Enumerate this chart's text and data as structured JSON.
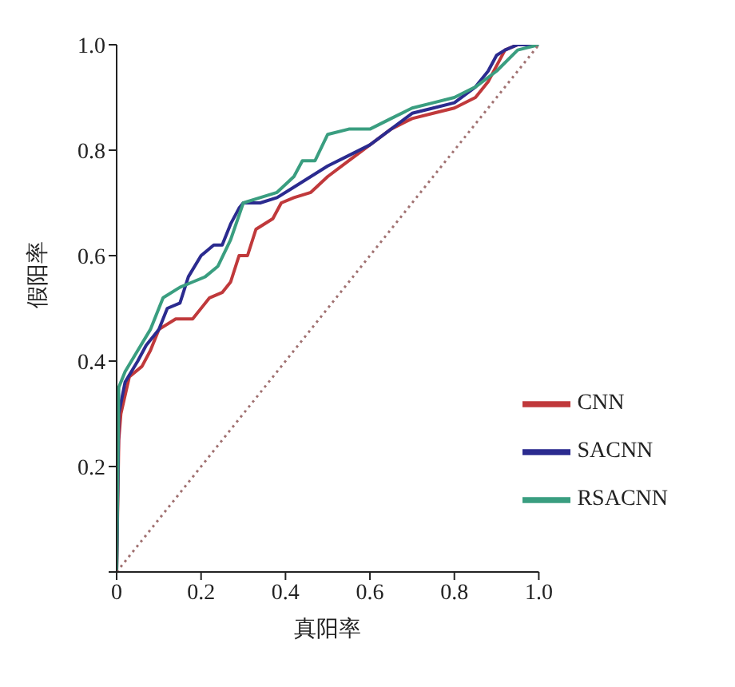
{
  "chart_data": {
    "type": "line",
    "xlabel": "真阳率",
    "ylabel": "假阳率",
    "xlim": [
      0,
      1
    ],
    "ylim": [
      0,
      1
    ],
    "xticks": [
      0,
      0.2,
      0.4,
      0.6,
      0.8,
      {
        "value": 1,
        "label": "1.0"
      }
    ],
    "yticks": [
      {
        "value": 0,
        "label": null
      },
      0.2,
      0.4,
      0.6,
      0.8,
      {
        "value": 1,
        "label": "1.0"
      }
    ],
    "grid": false,
    "legend": "bottom right",
    "marker": "none",
    "series": [
      {
        "name": "CNN",
        "color": "#c0393b",
        "x": [
          0,
          0.005,
          0.01,
          0.03,
          0.06,
          0.08,
          0.1,
          0.14,
          0.18,
          0.22,
          0.25,
          0.27,
          0.29,
          0.31,
          0.33,
          0.37,
          0.39,
          0.42,
          0.46,
          0.5,
          0.55,
          0.6,
          0.65,
          0.7,
          0.75,
          0.8,
          0.85,
          0.88,
          0.9,
          0.92,
          0.95,
          1
        ],
        "values": [
          0,
          0.25,
          0.3,
          0.37,
          0.39,
          0.42,
          0.46,
          0.48,
          0.48,
          0.52,
          0.53,
          0.55,
          0.6,
          0.6,
          0.65,
          0.67,
          0.7,
          0.71,
          0.72,
          0.75,
          0.78,
          0.81,
          0.84,
          0.86,
          0.87,
          0.88,
          0.9,
          0.93,
          0.96,
          0.99,
          1,
          1
        ]
      },
      {
        "name": "SACNN",
        "color": "#2b2b8f",
        "x": [
          0,
          0.005,
          0.02,
          0.05,
          0.07,
          0.1,
          0.12,
          0.15,
          0.17,
          0.2,
          0.23,
          0.25,
          0.27,
          0.29,
          0.3,
          0.34,
          0.38,
          0.42,
          0.46,
          0.5,
          0.55,
          0.6,
          0.65,
          0.7,
          0.75,
          0.8,
          0.85,
          0.88,
          0.9,
          0.92,
          0.95,
          1
        ],
        "values": [
          0,
          0.3,
          0.36,
          0.4,
          0.43,
          0.46,
          0.5,
          0.51,
          0.56,
          0.6,
          0.62,
          0.62,
          0.66,
          0.69,
          0.7,
          0.7,
          0.71,
          0.73,
          0.75,
          0.77,
          0.79,
          0.81,
          0.84,
          0.87,
          0.88,
          0.89,
          0.92,
          0.95,
          0.98,
          0.99,
          1,
          1
        ]
      },
      {
        "name": "RSACNN",
        "color": "#3a9e80",
        "x": [
          0,
          0.005,
          0.02,
          0.05,
          0.08,
          0.11,
          0.15,
          0.18,
          0.21,
          0.24,
          0.27,
          0.3,
          0.34,
          0.38,
          0.42,
          0.44,
          0.47,
          0.5,
          0.55,
          0.6,
          0.65,
          0.7,
          0.75,
          0.8,
          0.85,
          0.9,
          0.95,
          1
        ],
        "values": [
          0,
          0.35,
          0.38,
          0.42,
          0.46,
          0.52,
          0.54,
          0.55,
          0.56,
          0.58,
          0.63,
          0.7,
          0.71,
          0.72,
          0.75,
          0.78,
          0.78,
          0.83,
          0.84,
          0.84,
          0.86,
          0.88,
          0.89,
          0.9,
          0.92,
          0.95,
          0.99,
          1
        ]
      },
      {
        "color": "#a07070",
        "line_style": "dotted",
        "x": [
          0,
          1
        ],
        "values": [
          0,
          1
        ]
      }
    ]
  }
}
